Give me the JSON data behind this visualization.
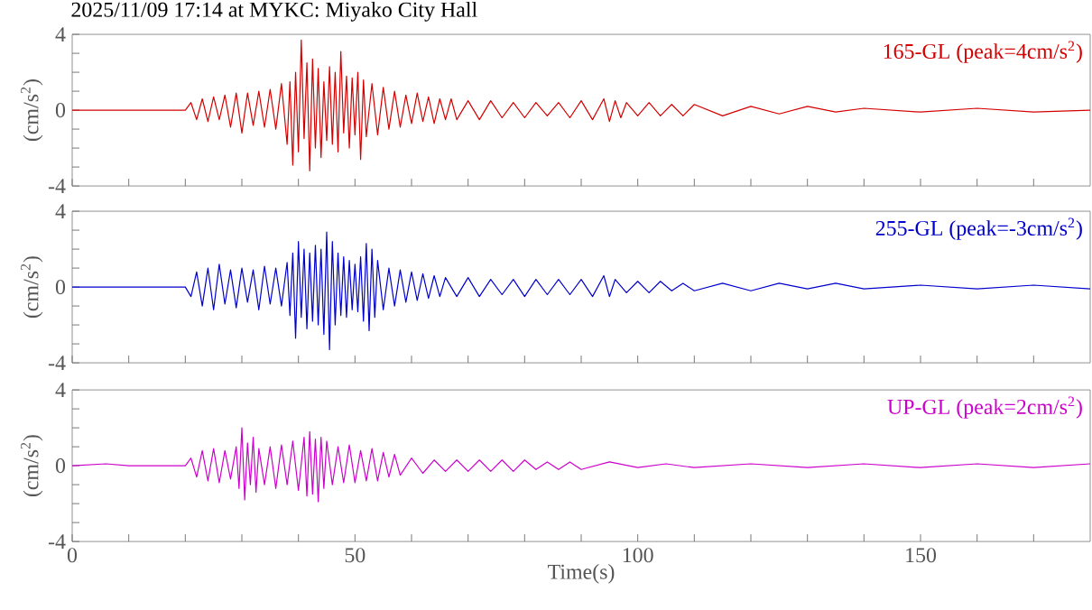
{
  "chart_data": [
    {
      "type": "line",
      "title": "2025/11/09 17:14 at MYKC: Miyako City Hall",
      "ylabel": "(cm/s$^{2}$)",
      "annotations": [
        "165-GL (peak=4cm/s$^{2}$)"
      ],
      "tick_labels": "y",
      "xlim": [
        0,
        180
      ],
      "ylim": [
        -4,
        4
      ],
      "xticks": [
        {
          "value": 0,
          "label": null
        },
        {
          "value": 10,
          "label": null
        },
        {
          "value": 20,
          "label": null
        },
        {
          "value": 30,
          "label": null
        },
        {
          "value": 40,
          "label": null
        },
        {
          "value": 50,
          "label": null
        },
        {
          "value": 60,
          "label": null
        },
        {
          "value": 70,
          "label": null
        },
        {
          "value": 80,
          "label": null
        },
        {
          "value": 90,
          "label": null
        },
        {
          "value": 100,
          "label": null
        },
        {
          "value": 110,
          "label": null
        },
        {
          "value": 120,
          "label": null
        },
        {
          "value": 130,
          "label": null
        },
        {
          "value": 140,
          "label": null
        },
        {
          "value": 150,
          "label": null
        },
        {
          "value": 160,
          "label": null
        },
        {
          "value": 170,
          "label": null
        }
      ],
      "yticks": [
        -4,
        {
          "value": -3,
          "label": null
        },
        {
          "value": -2,
          "label": null
        },
        {
          "value": -1,
          "label": null
        },
        0,
        {
          "value": 1,
          "label": null
        },
        {
          "value": 2,
          "label": null
        },
        {
          "value": 3,
          "label": null
        },
        4
      ],
      "x": [
        0,
        10,
        20,
        21,
        22,
        23,
        24,
        25,
        26,
        27,
        28,
        29,
        30,
        31,
        32,
        33,
        34,
        35,
        36,
        37,
        38,
        38.5,
        39,
        39.5,
        40,
        40.5,
        41,
        41.5,
        42,
        42.5,
        43,
        43.5,
        44,
        44.5,
        45,
        45.5,
        46,
        46.5,
        47,
        47.5,
        48,
        48.5,
        49,
        49.5,
        50,
        50.5,
        51,
        51.5,
        52,
        53,
        54,
        55,
        56,
        57,
        58,
        59,
        60,
        61,
        62,
        63,
        64,
        65,
        66,
        67,
        68,
        70,
        72,
        74,
        76,
        78,
        80,
        82,
        84,
        86,
        88,
        90,
        92,
        94,
        95,
        96,
        97,
        98,
        100,
        102,
        104,
        106,
        108,
        110,
        115,
        120,
        125,
        130,
        135,
        140,
        150,
        160,
        170,
        180
      ],
      "series": [
        {
          "color": "#d40000",
          "values": [
            0,
            0,
            0,
            0.4,
            -0.5,
            0.6,
            -0.6,
            0.7,
            -0.5,
            0.8,
            -0.9,
            0.9,
            -1.2,
            0.9,
            -0.8,
            1.0,
            -0.9,
            1.1,
            -1.0,
            1.4,
            -1.8,
            1.5,
            -2.9,
            2.0,
            -2.2,
            3.7,
            -1.5,
            2.5,
            -3.2,
            2.7,
            -2.0,
            2.2,
            -2.5,
            1.5,
            -1.6,
            2.3,
            -1.8,
            2.0,
            -2.2,
            3.1,
            -1.2,
            1.8,
            -2.0,
            1.7,
            -1.3,
            2.0,
            -2.6,
            1.6,
            -1.4,
            1.4,
            -1.3,
            1.2,
            -1.0,
            1.0,
            -0.9,
            0.8,
            -0.7,
            0.9,
            -0.6,
            0.7,
            -0.7,
            0.6,
            -0.5,
            0.6,
            -0.5,
            0.5,
            -0.5,
            0.5,
            -0.4,
            0.4,
            -0.4,
            0.4,
            -0.3,
            0.4,
            -0.4,
            0.5,
            -0.5,
            0.6,
            -0.6,
            0.5,
            -0.4,
            0.4,
            -0.3,
            0.4,
            -0.3,
            0.3,
            -0.3,
            0.3,
            -0.3,
            0.2,
            -0.2,
            0.2,
            -0.1,
            0.1,
            -0.1,
            0.1,
            -0.1,
            0
          ]
        }
      ]
    },
    {
      "type": "line",
      "ylabel": "(cm/s$^{2}$)",
      "annotations": [
        "255-GL (peak=-3cm/s$^{2}$)"
      ],
      "tick_labels": "y",
      "xlim": [
        0,
        180
      ],
      "ylim": [
        -4,
        4
      ],
      "xticks": [
        {
          "value": 0,
          "label": null
        },
        {
          "value": 10,
          "label": null
        },
        {
          "value": 20,
          "label": null
        },
        {
          "value": 30,
          "label": null
        },
        {
          "value": 40,
          "label": null
        },
        {
          "value": 50,
          "label": null
        },
        {
          "value": 60,
          "label": null
        },
        {
          "value": 70,
          "label": null
        },
        {
          "value": 80,
          "label": null
        },
        {
          "value": 90,
          "label": null
        },
        {
          "value": 100,
          "label": null
        },
        {
          "value": 110,
          "label": null
        },
        {
          "value": 120,
          "label": null
        },
        {
          "value": 130,
          "label": null
        },
        {
          "value": 140,
          "label": null
        },
        {
          "value": 150,
          "label": null
        },
        {
          "value": 160,
          "label": null
        },
        {
          "value": 170,
          "label": null
        }
      ],
      "yticks": [
        -4,
        {
          "value": -3,
          "label": null
        },
        {
          "value": -2,
          "label": null
        },
        {
          "value": -1,
          "label": null
        },
        0,
        {
          "value": 1,
          "label": null
        },
        {
          "value": 2,
          "label": null
        },
        {
          "value": 3,
          "label": null
        },
        4
      ],
      "x": [
        0,
        10,
        20,
        21,
        22,
        23,
        24,
        25,
        26,
        27,
        28,
        29,
        30,
        31,
        32,
        33,
        34,
        35,
        36,
        37,
        38,
        38.5,
        39,
        39.5,
        40,
        40.5,
        41,
        41.5,
        42,
        42.5,
        43,
        43.5,
        44,
        44.5,
        45,
        45.5,
        46,
        46.5,
        47,
        47.5,
        48,
        48.5,
        49,
        49.5,
        50,
        50.5,
        51,
        51.5,
        52,
        52.5,
        53,
        53.5,
        54,
        55,
        56,
        57,
        58,
        59,
        60,
        61,
        62,
        63,
        64,
        65,
        66,
        68,
        70,
        72,
        74,
        76,
        78,
        80,
        82,
        84,
        86,
        88,
        90,
        92,
        94,
        95,
        96,
        98,
        100,
        102,
        104,
        106,
        108,
        110,
        115,
        120,
        125,
        130,
        135,
        140,
        150,
        160,
        170,
        180
      ],
      "series": [
        {
          "color": "#0000cc",
          "values": [
            0,
            0,
            0,
            -0.5,
            0.8,
            -1.0,
            1.0,
            -1.2,
            1.2,
            -0.9,
            0.9,
            -1.1,
            1.0,
            -0.8,
            0.9,
            -1.2,
            1.1,
            -0.9,
            1.0,
            -1.0,
            1.3,
            -1.5,
            1.8,
            -2.7,
            2.4,
            -1.6,
            2.0,
            -2.2,
            1.8,
            -1.8,
            2.2,
            -2.0,
            2.0,
            -2.5,
            2.9,
            -3.3,
            2.4,
            -2.0,
            1.8,
            -1.5,
            1.6,
            -1.6,
            1.4,
            -1.2,
            1.2,
            -1.3,
            1.6,
            -1.8,
            2.3,
            -2.3,
            2.0,
            -1.6,
            1.4,
            -1.2,
            1.0,
            -1.0,
            0.9,
            -0.8,
            0.8,
            -0.7,
            0.7,
            -0.6,
            0.6,
            -0.5,
            0.5,
            -0.5,
            0.5,
            -0.5,
            0.4,
            -0.4,
            0.4,
            -0.5,
            0.4,
            -0.4,
            0.4,
            -0.4,
            0.4,
            -0.5,
            0.6,
            -0.5,
            0.4,
            -0.3,
            0.3,
            -0.3,
            0.3,
            -0.2,
            0.2,
            -0.2,
            0.2,
            -0.2,
            0.2,
            -0.1,
            0.2,
            -0.1,
            0.1,
            -0.1,
            0.1,
            -0.1
          ]
        }
      ]
    },
    {
      "type": "line",
      "ylabel": "(cm/s$^{2}$)",
      "xlabel": "Time(s)",
      "annotations": [
        "UP-GL (peak=2cm/s$^{2}$)"
      ],
      "xlim": [
        0,
        180
      ],
      "ylim": [
        -4,
        4
      ],
      "xticks": [
        0,
        {
          "value": 10,
          "label": null
        },
        {
          "value": 20,
          "label": null
        },
        {
          "value": 30,
          "label": null
        },
        {
          "value": 40,
          "label": null
        },
        50,
        {
          "value": 60,
          "label": null
        },
        {
          "value": 70,
          "label": null
        },
        {
          "value": 80,
          "label": null
        },
        {
          "value": 90,
          "label": null
        },
        100,
        {
          "value": 110,
          "label": null
        },
        {
          "value": 120,
          "label": null
        },
        {
          "value": 130,
          "label": null
        },
        {
          "value": 140,
          "label": null
        },
        150,
        {
          "value": 160,
          "label": null
        },
        {
          "value": 170,
          "label": null
        }
      ],
      "yticks": [
        -4,
        {
          "value": -3,
          "label": null
        },
        {
          "value": -2,
          "label": null
        },
        {
          "value": -1,
          "label": null
        },
        0,
        {
          "value": 1,
          "label": null
        },
        {
          "value": 2,
          "label": null
        },
        {
          "value": 3,
          "label": null
        },
        4
      ],
      "x": [
        0,
        6,
        10,
        20,
        21,
        22,
        23,
        24,
        25,
        26,
        27,
        28,
        29,
        29.5,
        30,
        30.5,
        31,
        31.5,
        32,
        32.5,
        33,
        34,
        35,
        36,
        37,
        38,
        39,
        40,
        41,
        41.5,
        42,
        42.5,
        43,
        43.5,
        44,
        44.5,
        45,
        46,
        47,
        48,
        49,
        50,
        51,
        52,
        53,
        54,
        55,
        56,
        57,
        58,
        60,
        62,
        64,
        66,
        68,
        70,
        72,
        74,
        76,
        78,
        80,
        82,
        84,
        86,
        88,
        90,
        95,
        100,
        105,
        110,
        120,
        130,
        140,
        150,
        160,
        170,
        180
      ],
      "series": [
        {
          "color": "#cc00cc",
          "values": [
            0,
            0.1,
            0,
            0,
            0.4,
            -0.6,
            0.8,
            -0.8,
            0.9,
            -0.9,
            0.8,
            -0.7,
            1.0,
            -1.2,
            2.0,
            -1.8,
            1.2,
            -1.0,
            1.5,
            -1.4,
            0.9,
            -1.0,
            1.0,
            -1.2,
            1.1,
            -1.0,
            1.3,
            -1.3,
            1.5,
            -1.6,
            1.8,
            -1.5,
            1.4,
            -1.9,
            1.5,
            -1.2,
            1.3,
            -1.0,
            1.0,
            -0.9,
            1.1,
            -0.9,
            0.8,
            -0.8,
            0.9,
            -0.8,
            0.7,
            -0.6,
            0.6,
            -0.5,
            0.4,
            -0.4,
            0.3,
            -0.3,
            0.3,
            -0.3,
            0.3,
            -0.3,
            0.3,
            -0.3,
            0.3,
            -0.2,
            0.2,
            -0.2,
            0.2,
            -0.2,
            0.2,
            -0.1,
            0.1,
            -0.1,
            0.1,
            -0.1,
            0.1,
            -0.1,
            0.1,
            -0.1,
            0.1
          ]
        }
      ]
    }
  ]
}
